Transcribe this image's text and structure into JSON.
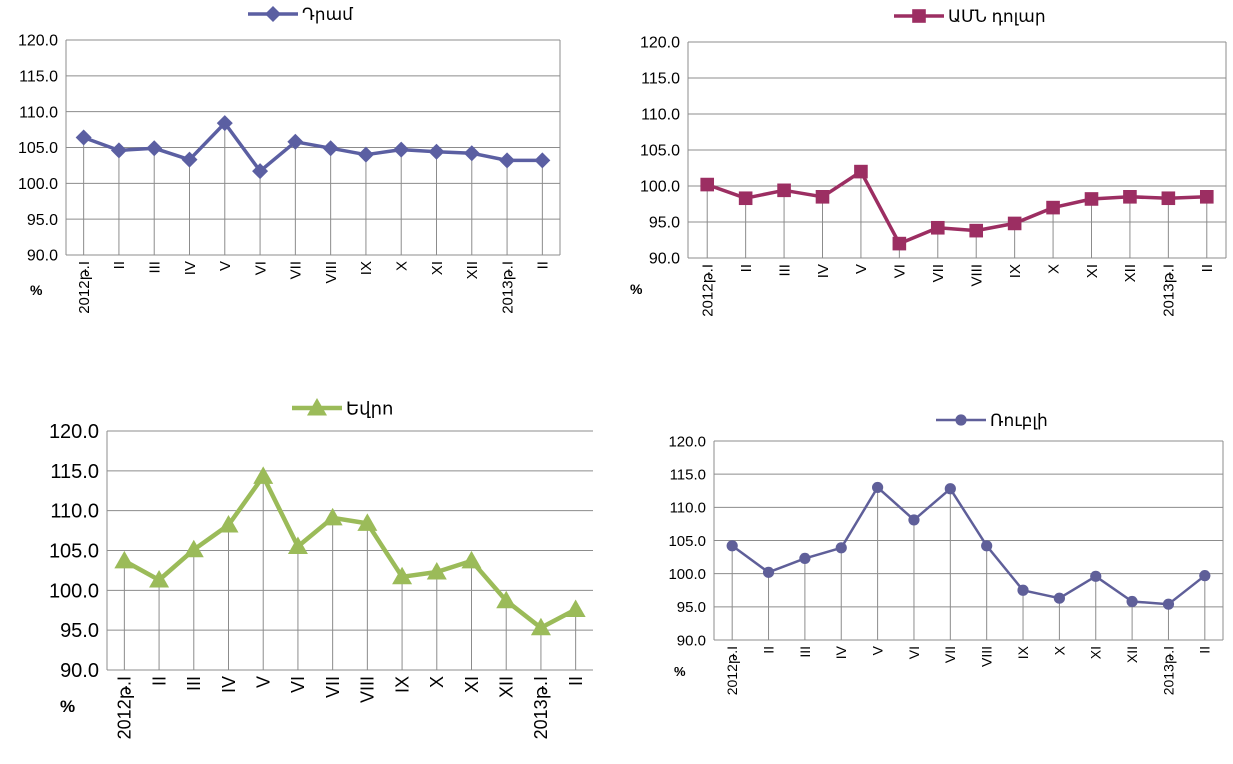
{
  "chart_data": [
    {
      "type": "line",
      "legend_position": "top",
      "grid": true,
      "ylim": [
        90,
        120
      ],
      "yticks": [
        "120.0",
        "115.0",
        "110.0",
        "105.0",
        "100.0",
        "95.0",
        "90.0"
      ],
      "unit_label": "%",
      "categories": [
        "2012թ.I",
        "II",
        "III",
        "IV",
        "V",
        "VI",
        "VII",
        "VIII",
        "IX",
        "X",
        "XI",
        "XII",
        "2013թ.I",
        "II"
      ],
      "series": [
        {
          "name": "Դրամ",
          "color": "#5b5fa2",
          "marker": "diamond",
          "values": [
            106.4,
            104.6,
            104.9,
            103.3,
            108.4,
            101.7,
            105.8,
            104.9,
            104.0,
            104.7,
            104.4,
            104.2,
            103.2,
            103.2
          ]
        }
      ]
    },
    {
      "type": "line",
      "legend_position": "top",
      "grid": true,
      "ylim": [
        90,
        120
      ],
      "yticks": [
        "120.0",
        "115.0",
        "110.0",
        "105.0",
        "100.0",
        "95.0",
        "90.0"
      ],
      "unit_label": "%",
      "categories": [
        "2012թ.I",
        "II",
        "III",
        "IV",
        "V",
        "VI",
        "VII",
        "VIII",
        "IX",
        "X",
        "XI",
        "XII",
        "2013թ.I",
        "II"
      ],
      "series": [
        {
          "name": "ԱՄՆ դոլար",
          "color": "#9c2e62",
          "marker": "square",
          "values": [
            100.2,
            98.3,
            99.4,
            98.5,
            102.0,
            92.0,
            94.2,
            93.8,
            94.8,
            97.0,
            98.2,
            98.5,
            98.3,
            98.5
          ]
        }
      ]
    },
    {
      "type": "line",
      "legend_position": "top",
      "grid": true,
      "ylim": [
        90,
        120
      ],
      "yticks": [
        "120.0",
        "115.0",
        "110.0",
        "105.0",
        "100.0",
        "95.0",
        "90.0"
      ],
      "unit_label": "%",
      "categories": [
        "2012թ.I",
        "II",
        "III",
        "IV",
        "V",
        "VI",
        "VII",
        "VIII",
        "IX",
        "X",
        "XI",
        "XII",
        "2013թ.I",
        "II"
      ],
      "series": [
        {
          "name": "Եվրո",
          "color": "#9bbb59",
          "marker": "triangle",
          "values": [
            103.7,
            101.3,
            105.1,
            108.2,
            114.3,
            105.5,
            109.1,
            108.4,
            101.7,
            102.3,
            103.7,
            98.7,
            95.3,
            97.6
          ]
        }
      ]
    },
    {
      "type": "line",
      "legend_position": "top",
      "grid": true,
      "ylim": [
        90,
        120
      ],
      "yticks": [
        "120.0",
        "115.0",
        "110.0",
        "105.0",
        "100.0",
        "95.0",
        "90.0"
      ],
      "unit_label": "%",
      "categories": [
        "2012թ.I",
        "II",
        "III",
        "IV",
        "V",
        "VI",
        "VII",
        "VIII",
        "IX",
        "X",
        "XI",
        "XII",
        "2013թ.I",
        "II"
      ],
      "series": [
        {
          "name": "Ռուբլի",
          "color": "#5f5f99",
          "marker": "circle",
          "values": [
            104.2,
            100.2,
            102.3,
            103.9,
            113.0,
            108.1,
            112.8,
            104.2,
            97.5,
            96.3,
            99.6,
            95.8,
            95.4,
            99.7
          ]
        }
      ]
    }
  ]
}
